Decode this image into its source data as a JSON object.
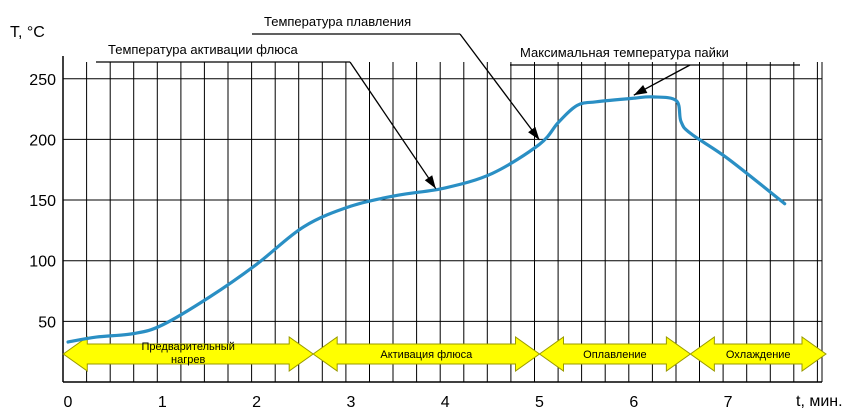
{
  "chart_data": {
    "type": "line",
    "title": "",
    "xlabel": "t, мин.",
    "ylabel": "T, °C",
    "xlim": [
      0,
      8
    ],
    "ylim": [
      0,
      260
    ],
    "x_ticks": [
      0,
      1,
      2,
      3,
      4,
      5,
      6,
      7
    ],
    "y_ticks": [
      50,
      100,
      150,
      200,
      250
    ],
    "grid": true,
    "colors": {
      "curve": "#2a8fc4",
      "arrow_fill": "#ffff00",
      "arrow_stroke": "#9a9a00",
      "grid": "#000000"
    },
    "series": [
      {
        "values_x": [
          0,
          0.3,
          0.7,
          1.0,
          1.5,
          2.0,
          2.5,
          3.0,
          3.5,
          4.0,
          4.5,
          5.0,
          5.2,
          5.4,
          5.6,
          6.0,
          6.2,
          6.45,
          6.5,
          6.6,
          7.0,
          7.6
        ],
        "values_y": [
          33,
          37,
          40,
          47,
          70,
          97,
          128,
          145,
          154,
          160,
          172,
          196,
          214,
          228,
          231,
          234,
          235,
          232,
          215,
          205,
          184,
          147
        ]
      }
    ],
    "annotations": [
      {
        "text": "Температура активации флюса",
        "x": 3.9,
        "y": 157
      },
      {
        "text": "Температура плавления",
        "x": 5.0,
        "y": 197
      },
      {
        "text": "Максимальная температура пайки",
        "x": 6.0,
        "y": 234
      }
    ],
    "phases": [
      {
        "label": [
          "Предварительный",
          "нагрев"
        ],
        "x_start": -0.05,
        "x_end": 2.6
      },
      {
        "label": [
          "Активация флюса"
        ],
        "x_start": 2.6,
        "x_end": 5.0
      },
      {
        "label": [
          "Оплавление"
        ],
        "x_start": 5.0,
        "x_end": 6.6
      },
      {
        "label": [
          "Охлаждение"
        ],
        "x_start": 6.6,
        "x_end": 8.4
      }
    ]
  }
}
